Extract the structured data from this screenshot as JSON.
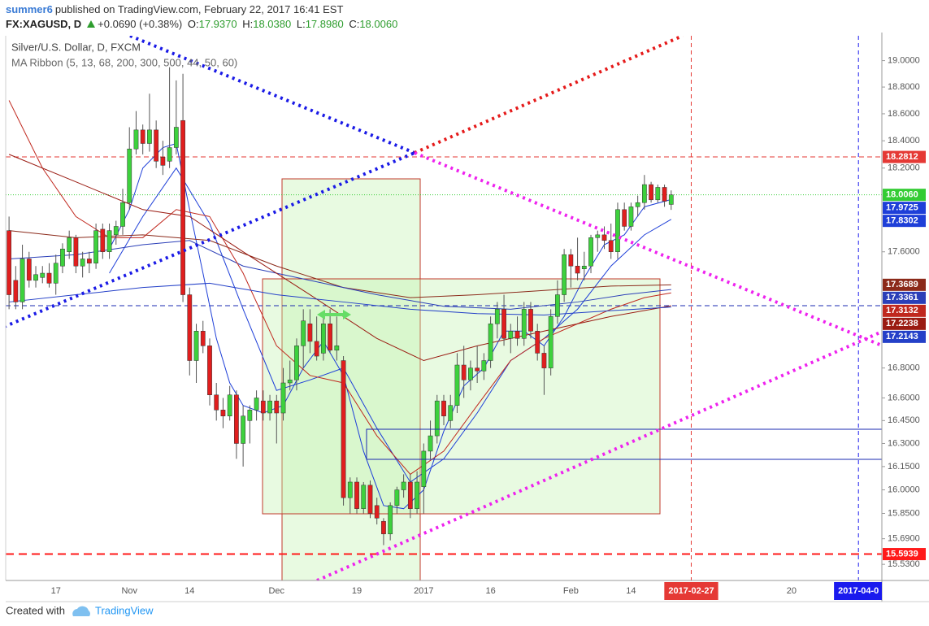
{
  "header": {
    "user": "summer6",
    "published": "published on TradingView.com, February 22, 2017 16:41 EST",
    "symbol": "FX:XAGUSD, D",
    "change": "+0.0690 (+0.38%)",
    "ohlc": [
      {
        "key": "O:",
        "value": "17.9370"
      },
      {
        "key": "H:",
        "value": "18.0380"
      },
      {
        "key": "L:",
        "value": "17.8980"
      },
      {
        "key": "C:",
        "value": "18.0060"
      }
    ]
  },
  "chart_data": {
    "type": "candlestick",
    "symbol_label": "Silver/U.S. Dollar, D, FXCM",
    "categories": [
      null,
      null,
      null,
      null,
      null,
      null,
      null,
      "17",
      null,
      null,
      null,
      null,
      null,
      null,
      null,
      null,
      null,
      null,
      "Nov",
      null,
      null,
      null,
      null,
      null,
      null,
      null,
      null,
      "14",
      null,
      null,
      null,
      null,
      null,
      null,
      null,
      null,
      null,
      null,
      null,
      null,
      "Dec",
      null,
      null,
      null,
      null,
      null,
      null,
      null,
      null,
      null,
      null,
      null,
      "19",
      null,
      null,
      null,
      null,
      null,
      null,
      null,
      null,
      null,
      "2017",
      null,
      null,
      null,
      null,
      null,
      null,
      null,
      null,
      null,
      "16",
      null,
      null,
      null,
      null,
      null,
      null,
      null,
      null,
      null,
      null,
      null,
      "Feb",
      null,
      null,
      null,
      null,
      null,
      null,
      null,
      null,
      "14",
      null,
      null,
      null,
      null,
      null,
      null,
      null,
      null,
      "2017-02-27",
      null,
      null,
      null,
      null,
      null,
      null,
      null,
      null,
      null,
      null,
      null,
      null,
      null,
      null,
      "20",
      null,
      null,
      null,
      null,
      null,
      null,
      null,
      null,
      null,
      "2017-04-0",
      null,
      null,
      null
    ],
    "open": [
      17.75,
      17.4,
      17.25,
      17.55,
      17.4,
      17.42,
      17.45,
      17.38,
      17.5,
      17.6,
      17.7,
      17.5,
      17.55,
      17.52,
      17.76,
      17.6,
      17.72,
      17.78,
      17.95,
      18.34,
      18.48,
      18.38,
      18.48,
      18.28,
      18.25,
      18.35,
      18.55,
      17.3,
      16.85,
      17.05,
      16.95,
      16.62,
      16.52,
      16.48,
      16.62,
      16.3,
      16.45,
      16.52,
      16.58,
      16.5,
      16.58,
      16.5,
      16.7,
      16.72,
      16.95,
      17.1,
      16.98,
      16.9,
      17.1,
      16.92,
      16.85,
      15.95,
      16.05,
      15.88,
      16.03,
      15.9,
      15.8,
      15.72,
      15.9,
      16.0,
      16.05,
      15.88,
      16.02,
      16.25,
      16.35,
      16.58,
      16.45,
      16.55,
      16.82,
      16.72,
      16.8,
      16.78,
      16.85,
      17.1,
      17.2,
      17.0,
      17.05,
      17.0,
      17.2,
      17.05,
      16.9,
      16.8,
      17.15,
      17.3,
      17.58,
      17.5,
      17.48,
      17.5,
      17.7,
      17.72,
      17.68,
      17.6,
      17.9,
      17.78,
      17.92,
      17.95,
      18.08,
      17.97,
      18.06,
      17.937,
      null,
      null,
      null,
      null,
      null,
      null,
      null,
      null,
      null,
      null,
      null,
      null,
      null,
      null,
      null,
      null,
      null,
      null,
      null,
      null,
      null,
      null,
      null,
      null,
      null,
      null,
      null,
      null,
      null,
      null,
      null
    ],
    "high": [
      17.85,
      17.5,
      17.65,
      17.6,
      17.5,
      17.5,
      17.52,
      17.58,
      17.66,
      17.75,
      17.72,
      17.6,
      17.6,
      17.8,
      17.8,
      17.8,
      17.82,
      18.05,
      18.5,
      18.62,
      18.52,
      18.75,
      18.55,
      18.4,
      18.95,
      18.85,
      18.9,
      17.35,
      17.1,
      17.12,
      17.0,
      16.7,
      16.6,
      16.68,
      16.65,
      16.55,
      16.55,
      16.65,
      16.65,
      16.62,
      16.62,
      16.8,
      16.85,
      17.0,
      17.2,
      17.2,
      17.15,
      17.15,
      17.2,
      17.15,
      16.88,
      16.08,
      16.08,
      16.05,
      16.06,
      15.95,
      15.82,
      15.92,
      16.02,
      16.1,
      16.1,
      16.12,
      16.3,
      16.45,
      16.62,
      16.62,
      16.62,
      16.9,
      16.95,
      16.85,
      16.95,
      16.9,
      17.15,
      17.25,
      17.3,
      17.1,
      17.15,
      17.25,
      17.25,
      17.1,
      16.95,
      17.2,
      17.4,
      17.62,
      17.62,
      17.7,
      17.6,
      17.72,
      17.75,
      17.78,
      17.8,
      17.95,
      17.95,
      17.95,
      18.0,
      18.15,
      18.1,
      18.08,
      18.08,
      18.038,
      null,
      null,
      null,
      null,
      null,
      null,
      null,
      null,
      null,
      null,
      null,
      null,
      null,
      null,
      null,
      null,
      null,
      null,
      null,
      null,
      null,
      null,
      null,
      null,
      null,
      null,
      null,
      null,
      null,
      null,
      null
    ],
    "low": [
      17.2,
      17.2,
      17.2,
      17.35,
      17.35,
      17.38,
      17.35,
      17.3,
      17.45,
      17.55,
      17.45,
      17.42,
      17.45,
      17.48,
      17.55,
      17.55,
      17.65,
      17.72,
      17.9,
      18.3,
      18.3,
      18.32,
      18.2,
      18.15,
      18.2,
      18.3,
      17.25,
      16.75,
      16.7,
      16.9,
      16.55,
      16.45,
      16.4,
      16.45,
      16.2,
      16.15,
      16.3,
      16.45,
      16.45,
      16.45,
      16.3,
      16.45,
      16.65,
      16.65,
      16.8,
      16.9,
      16.85,
      16.85,
      16.9,
      16.85,
      15.9,
      15.85,
      15.85,
      15.85,
      15.82,
      15.78,
      15.65,
      15.68,
      15.85,
      15.95,
      15.82,
      15.85,
      15.85,
      16.2,
      16.3,
      16.42,
      16.4,
      16.5,
      16.6,
      16.65,
      16.7,
      16.72,
      16.8,
      17.0,
      16.95,
      16.9,
      16.95,
      16.95,
      17.0,
      16.85,
      16.62,
      16.75,
      17.1,
      17.25,
      17.35,
      17.4,
      17.4,
      17.45,
      17.6,
      17.62,
      17.55,
      17.55,
      17.75,
      17.75,
      17.85,
      17.9,
      17.95,
      17.95,
      17.92,
      17.898,
      null,
      null,
      null,
      null,
      null,
      null,
      null,
      null,
      null,
      null,
      null,
      null,
      null,
      null,
      null,
      null,
      null,
      null,
      null,
      null,
      null,
      null,
      null,
      null,
      null,
      null,
      null,
      null,
      null,
      null,
      null
    ],
    "close": [
      17.3,
      17.25,
      17.55,
      17.4,
      17.44,
      17.45,
      17.38,
      17.52,
      17.62,
      17.7,
      17.5,
      17.55,
      17.52,
      17.75,
      17.6,
      17.75,
      17.78,
      17.95,
      18.34,
      18.48,
      18.38,
      18.48,
      18.25,
      18.22,
      18.35,
      18.5,
      17.3,
      16.85,
      17.05,
      16.95,
      16.62,
      16.52,
      16.48,
      16.62,
      16.3,
      16.48,
      16.52,
      16.6,
      16.5,
      16.58,
      16.5,
      16.7,
      16.72,
      16.95,
      17.12,
      16.98,
      16.88,
      17.1,
      16.92,
      16.95,
      15.95,
      16.05,
      15.88,
      16.03,
      15.85,
      15.82,
      15.72,
      15.9,
      16.0,
      16.05,
      15.88,
      16.05,
      16.25,
      16.35,
      16.58,
      16.48,
      16.55,
      16.82,
      16.72,
      16.8,
      16.78,
      16.85,
      17.1,
      17.2,
      17.0,
      17.05,
      17.0,
      17.2,
      17.05,
      16.9,
      16.8,
      17.15,
      17.3,
      17.58,
      17.5,
      17.45,
      17.5,
      17.7,
      17.72,
      17.68,
      17.6,
      17.9,
      17.78,
      17.92,
      17.95,
      18.08,
      17.97,
      18.06,
      17.96,
      18.006,
      null,
      null,
      null,
      null,
      null,
      null,
      null,
      null,
      null,
      null,
      null,
      null,
      null,
      null,
      null,
      null,
      null,
      null,
      null,
      null,
      null,
      null,
      null,
      null,
      null,
      null,
      null,
      null,
      null,
      null,
      null
    ],
    "up_color": "#3dd13d",
    "down_color": "#e01e1e",
    "wick_color": "#555555",
    "ylim": [
      15.43,
      19.19
    ],
    "log_scale": true,
    "grid": false,
    "yticks": [
      {
        "value": 19,
        "label": "19.0000"
      },
      {
        "value": 18.8,
        "label": "18.8000"
      },
      {
        "value": 18.6,
        "label": "18.6000"
      },
      {
        "value": 18.4,
        "label": "18.4000"
      },
      {
        "value": 18.2,
        "label": "18.2000"
      },
      {
        "value": 17.6,
        "label": "17.6000"
      },
      {
        "value": 16.8,
        "label": "16.8000"
      },
      {
        "value": 16.6,
        "label": "16.6000"
      },
      {
        "value": 16.45,
        "label": "16.4500"
      },
      {
        "value": 16.3,
        "label": "16.3000"
      },
      {
        "value": 16.15,
        "label": "16.1500"
      },
      {
        "value": 16,
        "label": "16.0000"
      },
      {
        "value": 15.85,
        "label": "15.8500"
      },
      {
        "value": 15.69,
        "label": "15.6900"
      },
      {
        "value": 15.53,
        "label": "15.5300"
      }
    ],
    "ribbon": {
      "label": "MA Ribbon (5, 13, 68, 200, 300, 500, 44, 50, 60)",
      "lines": [
        {
          "color": "#1e3fd8",
          "x": [
            15,
            18,
            20,
            23,
            25,
            27,
            29,
            31,
            33,
            35,
            38,
            41,
            44,
            47,
            50,
            53,
            56,
            59,
            62,
            65,
            68,
            71,
            74,
            77,
            80,
            83,
            86,
            89,
            92,
            95,
            99
          ],
          "values": [
            17.62,
            17.9,
            18.2,
            18.35,
            18.38,
            17.9,
            17.45,
            17.0,
            16.7,
            16.55,
            16.5,
            16.55,
            16.8,
            16.98,
            16.75,
            16.25,
            15.9,
            15.88,
            16.0,
            16.38,
            16.68,
            16.8,
            17.05,
            17.05,
            16.95,
            17.15,
            17.42,
            17.65,
            17.72,
            17.92,
            17.9725
          ]
        },
        {
          "color": "#1e3fd8",
          "x": [
            15,
            20,
            25,
            30,
            35,
            40,
            45,
            50,
            55,
            60,
            65,
            70,
            75,
            80,
            85,
            90,
            95,
            99
          ],
          "values": [
            17.45,
            17.85,
            18.2,
            17.8,
            17.2,
            16.65,
            16.72,
            16.8,
            16.4,
            16.05,
            16.2,
            16.5,
            16.85,
            17.0,
            17.2,
            17.5,
            17.72,
            17.8302
          ]
        },
        {
          "color": "#8b2a1a",
          "x": [
            0,
            10,
            20,
            30,
            40,
            50,
            60,
            70,
            80,
            90,
            99
          ],
          "values": [
            17.75,
            17.7,
            17.72,
            17.68,
            17.5,
            17.35,
            17.28,
            17.3,
            17.33,
            17.36,
            17.3689
          ]
        },
        {
          "color": "#2b3fb8",
          "x": [
            0,
            10,
            20,
            27,
            35,
            45,
            55,
            65,
            75,
            85,
            92,
            99
          ],
          "values": [
            17.55,
            17.58,
            17.65,
            17.68,
            17.5,
            17.4,
            17.3,
            17.22,
            17.2,
            17.25,
            17.3,
            17.3361
          ]
        },
        {
          "color": "#c0281e",
          "x": [
            0,
            5,
            10,
            15,
            20,
            25,
            30,
            35,
            40,
            45,
            50,
            55,
            60,
            65,
            70,
            75,
            80,
            85,
            90,
            95,
            99
          ],
          "values": [
            18.7,
            18.2,
            17.85,
            17.7,
            17.7,
            17.9,
            17.85,
            17.45,
            16.95,
            16.75,
            16.7,
            16.35,
            16.1,
            16.25,
            16.55,
            16.85,
            17.0,
            17.1,
            17.2,
            17.28,
            17.3132
          ]
        },
        {
          "color": "#9a1b12",
          "x": [
            0,
            10,
            20,
            27,
            35,
            45,
            55,
            62,
            70,
            80,
            90,
            99
          ],
          "values": [
            18.3,
            18.1,
            17.9,
            17.85,
            17.6,
            17.3,
            17.0,
            16.85,
            16.95,
            17.05,
            17.15,
            17.2238
          ]
        },
        {
          "color": "#2440c8",
          "x": [
            0,
            10,
            20,
            30,
            40,
            50,
            60,
            70,
            80,
            90,
            99
          ],
          "values": [
            17.25,
            17.3,
            17.35,
            17.38,
            17.3,
            17.25,
            17.2,
            17.17,
            17.16,
            17.19,
            17.2143
          ]
        }
      ]
    },
    "levels": [
      {
        "value": 18.2812,
        "color": "#e53935",
        "style": "dashed"
      },
      {
        "value": 15.5939,
        "color": "#ff1a1a",
        "style": "thick-dashed"
      }
    ],
    "last_price": {
      "value": 18.006,
      "label": "18.0060",
      "color": "#33cc33"
    },
    "vlines": [
      {
        "category": 102,
        "color": "#e53935"
      },
      {
        "category": 127,
        "color": "#1a1aee"
      }
    ]
  },
  "footer": {
    "created": "Created with",
    "brand": "TradingView"
  }
}
